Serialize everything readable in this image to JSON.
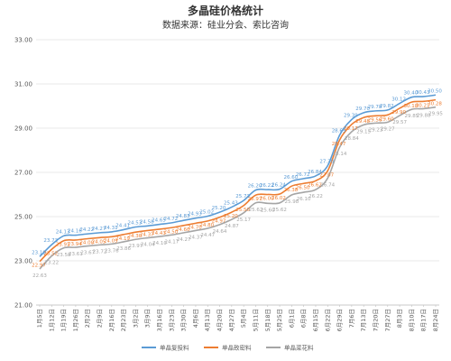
{
  "chart_data": {
    "type": "line",
    "title": "多晶硅价格统计",
    "subtitle": "数据来源：硅业分会、索比咨询",
    "xlabel": "",
    "ylabel": "",
    "ylim": [
      21.0,
      33.0
    ],
    "yticks": [
      "21.00",
      "23.00",
      "25.00",
      "27.00",
      "29.00",
      "31.00",
      "33.00"
    ],
    "grid": true,
    "legend_position": "bottom",
    "categories": [
      "1月5日",
      "1月12日",
      "1月19日",
      "1月26日",
      "2月2日",
      "2月9日",
      "2月16日",
      "2月23日",
      "3月2日",
      "3月9日",
      "3月16日",
      "3月23日",
      "3月30日",
      "4月6日",
      "4月13日",
      "4月20日",
      "4月27日",
      "5月4日",
      "5月11日",
      "5月18日",
      "5月25日",
      "6月1日",
      "6月8日",
      "6月15日",
      "6月22日",
      "6月29日",
      "7月6日",
      "7月13日",
      "7月20日",
      "7月27日",
      "8月3日",
      "8月10日",
      "8月17日",
      "8月24日"
    ],
    "series": [
      {
        "name": "单晶复投料",
        "color": "#5B9BD5",
        "values": [
          23.19,
          23.73,
          24.13,
          24.16,
          24.22,
          24.27,
          24.31,
          24.41,
          24.53,
          24.58,
          24.65,
          24.72,
          24.83,
          24.93,
          25.02,
          25.2,
          25.43,
          25.73,
          26.2,
          26.22,
          26.24,
          26.6,
          26.72,
          26.84,
          27.3,
          28.69,
          29.39,
          29.7,
          29.78,
          29.82,
          30.12,
          30.4,
          30.43,
          30.5
        ]
      },
      {
        "name": "单晶致密料",
        "color": "#ED7D31",
        "values": [
          22.97,
          23.52,
          23.91,
          23.94,
          24.0,
          24.05,
          24.09,
          24.19,
          24.3,
          24.37,
          24.43,
          24.5,
          24.6,
          24.7,
          24.8,
          24.97,
          25.2,
          25.5,
          25.97,
          26.0,
          26.02,
          26.38,
          26.5,
          26.62,
          27.07,
          28.47,
          29.17,
          29.48,
          29.56,
          29.6,
          29.9,
          30.18,
          30.21,
          30.28
        ]
      },
      {
        "name": "单晶菜花料",
        "color": "#A5A5A5",
        "values": [
          22.63,
          23.22,
          23.58,
          23.61,
          23.67,
          23.72,
          23.76,
          23.86,
          23.97,
          24.04,
          24.1,
          24.17,
          24.27,
          24.37,
          24.47,
          24.64,
          24.87,
          25.17,
          25.62,
          25.6,
          25.62,
          25.98,
          26.1,
          26.22,
          26.74,
          28.14,
          28.84,
          29.15,
          29.23,
          29.27,
          29.57,
          29.85,
          29.88,
          29.95
        ]
      }
    ]
  }
}
